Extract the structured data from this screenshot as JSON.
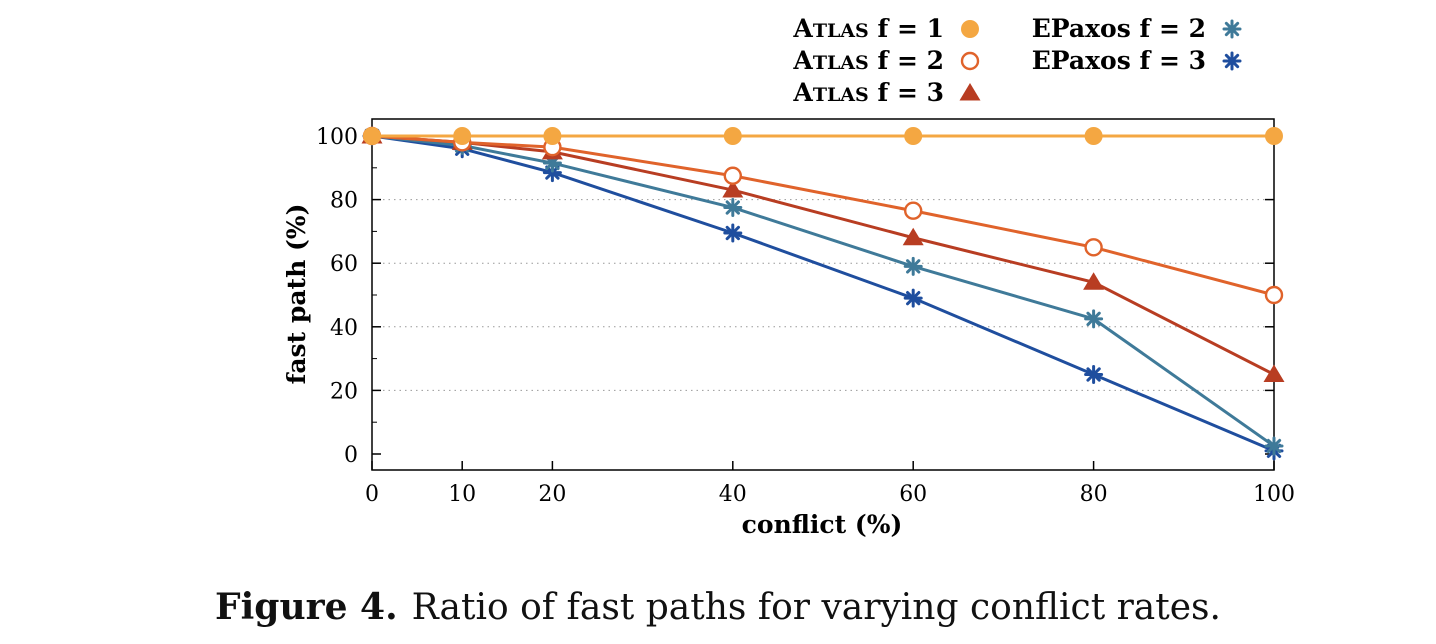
{
  "caption": {
    "label": "Figure 4.",
    "text": "Ratio of fast paths for varying conflict rates."
  },
  "chart_data": {
    "type": "line",
    "xlabel": "conflict (%)",
    "ylabel": "fast path (%)",
    "xlim": [
      0,
      100
    ],
    "ylim": [
      -5,
      105
    ],
    "x_ticks": [
      0,
      10,
      20,
      40,
      60,
      80,
      100
    ],
    "y_ticks": [
      0,
      20,
      40,
      60,
      80,
      100
    ],
    "grid": "horizontal dotted",
    "legend_placement": "top",
    "x": [
      0,
      10,
      20,
      40,
      60,
      80,
      100
    ],
    "series": [
      {
        "name_prefix": "A",
        "name_sc": "TLAS",
        "name": "f = 1",
        "color": "#F4A742",
        "marker": "filled-circle",
        "values": [
          100,
          100,
          100,
          100,
          100,
          100,
          100
        ]
      },
      {
        "name_prefix": "A",
        "name_sc": "TLAS",
        "name": "f = 2",
        "color": "#E0632B",
        "marker": "open-circle",
        "values": [
          100,
          98,
          96.5,
          87.5,
          76.5,
          65,
          50
        ]
      },
      {
        "name_prefix": "A",
        "name_sc": "TLAS",
        "name": "f = 3",
        "color": "#B83D22",
        "marker": "triangle",
        "values": [
          100,
          98,
          95,
          83,
          68,
          54,
          25
        ]
      },
      {
        "name_prefix": "EPaxos",
        "name_sc": "",
        "name": "f = 2",
        "color": "#3F7A99",
        "marker": "asterisk",
        "values": [
          100,
          97,
          91.5,
          77.5,
          59,
          42.5,
          2.5
        ]
      },
      {
        "name_prefix": "EPaxos",
        "name_sc": "",
        "name": "f = 3",
        "color": "#1F4E9E",
        "marker": "asterisk",
        "values": [
          100,
          96,
          88.5,
          69.5,
          49,
          25,
          1
        ]
      }
    ]
  }
}
